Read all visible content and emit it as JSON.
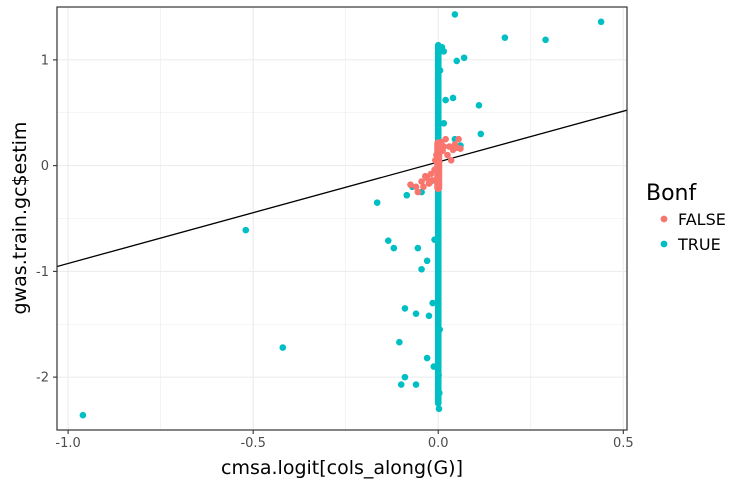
{
  "chart_data": {
    "type": "scatter",
    "xlabel": "cmsa.logit[cols_along(G)]",
    "ylabel": "gwas.train.gc$estim",
    "xlim": [
      -1.03,
      0.51
    ],
    "ylim": [
      -2.5,
      1.5
    ],
    "x_ticks": [
      -1.0,
      -0.5,
      0.0,
      0.5
    ],
    "x_tick_labels": [
      "-1.0",
      "-0.5",
      "0.0",
      "0.5"
    ],
    "y_ticks": [
      -2,
      -1,
      0,
      1
    ],
    "y_tick_labels": [
      "-2",
      "-1",
      "0",
      "1"
    ],
    "grid": true,
    "legend": {
      "title": "Bonf",
      "position": "right",
      "entries": [
        "FALSE",
        "TRUE"
      ]
    },
    "colors": {
      "FALSE": "#F8766D",
      "TRUE": "#00BFC4",
      "line": "#000000"
    },
    "fit_line": {
      "intercept": 0.035,
      "slope": 0.96
    },
    "series": [
      {
        "name": "TRUE",
        "points": [
          [
            -0.96,
            -2.36
          ],
          [
            -0.52,
            -0.61
          ],
          [
            -0.42,
            -1.72
          ],
          [
            -0.165,
            -0.35
          ],
          [
            -0.135,
            -0.71
          ],
          [
            -0.12,
            -0.78
          ],
          [
            -0.105,
            -1.67
          ],
          [
            -0.1,
            -2.07
          ],
          [
            -0.09,
            -2.0
          ],
          [
            -0.09,
            -1.35
          ],
          [
            -0.085,
            -0.28
          ],
          [
            -0.07,
            -0.2
          ],
          [
            -0.06,
            -2.07
          ],
          [
            -0.06,
            -1.4
          ],
          [
            -0.055,
            -0.78
          ],
          [
            -0.045,
            -0.25
          ],
          [
            -0.045,
            -0.98
          ],
          [
            -0.03,
            -1.82
          ],
          [
            -0.025,
            -1.42
          ],
          [
            -0.03,
            -0.9
          ],
          [
            -0.02,
            -0.15
          ],
          [
            -0.015,
            -1.3
          ],
          [
            -0.01,
            -0.7
          ],
          [
            -0.012,
            -1.9
          ],
          [
            0.045,
            1.43
          ],
          [
            0.05,
            0.99
          ],
          [
            0.07,
            1.02
          ],
          [
            0.04,
            0.64
          ],
          [
            0.045,
            0.25
          ],
          [
            0.06,
            0.19
          ],
          [
            0.11,
            0.57
          ],
          [
            0.115,
            0.3
          ],
          [
            0.18,
            1.21
          ],
          [
            0.29,
            1.19
          ],
          [
            0.44,
            1.36
          ],
          [
            0.015,
            1.08
          ],
          [
            0.01,
            1.12
          ],
          [
            0.02,
            0.62
          ],
          [
            0.015,
            0.4
          ],
          [
            0.005,
            0.9
          ],
          [
            0.002,
            -2.3
          ],
          [
            0.003,
            -2.15
          ],
          [
            0.001,
            -1.98
          ],
          [
            0.004,
            -1.55
          ],
          [
            0.0,
            -1.15
          ],
          [
            0.0,
            -0.05
          ],
          [
            0.0,
            0.45
          ],
          [
            0.0,
            0.8
          ]
        ],
        "dense_band": {
          "x": 0.0,
          "y_range": [
            -2.28,
            1.17
          ]
        }
      },
      {
        "name": "FALSE",
        "points": [
          [
            -0.075,
            -0.18
          ],
          [
            -0.06,
            -0.2
          ],
          [
            -0.055,
            -0.25
          ],
          [
            -0.045,
            -0.15
          ],
          [
            -0.04,
            -0.2
          ],
          [
            -0.035,
            -0.1
          ],
          [
            -0.03,
            -0.12
          ],
          [
            -0.025,
            -0.17
          ],
          [
            -0.02,
            -0.08
          ],
          [
            -0.015,
            -0.14
          ],
          [
            -0.01,
            -0.04
          ],
          [
            -0.008,
            0.05
          ],
          [
            -0.005,
            0.1
          ],
          [
            0.005,
            0.2
          ],
          [
            0.008,
            0.22
          ],
          [
            0.012,
            0.14
          ],
          [
            0.015,
            0.18
          ],
          [
            0.02,
            0.25
          ],
          [
            0.025,
            0.1
          ],
          [
            0.03,
            0.18
          ],
          [
            0.035,
            0.05
          ],
          [
            0.04,
            0.15
          ],
          [
            0.045,
            0.2
          ],
          [
            0.05,
            0.17
          ],
          [
            0.055,
            0.25
          ],
          [
            0.06,
            0.16
          ]
        ],
        "dense_band": {
          "x": 0.0,
          "y_range": [
            -0.25,
            0.25
          ]
        }
      }
    ]
  }
}
